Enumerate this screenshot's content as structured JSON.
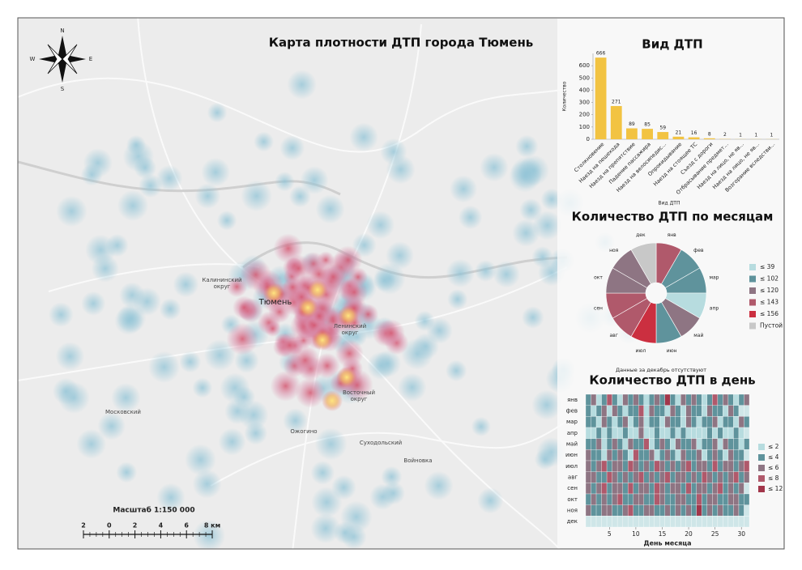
{
  "map": {
    "title": "Карта плотности ДТП города Тюмень",
    "compass": {
      "n": "N",
      "s": "S",
      "w": "W",
      "e": "E"
    },
    "places": [
      {
        "label": "Калининский",
        "label2": "округ"
      },
      {
        "label": "Тюмень"
      },
      {
        "label": "Ленинский",
        "label2": "округ"
      },
      {
        "label": "Восточный",
        "label2": "округ"
      },
      {
        "label": "Московский"
      },
      {
        "label": "Ожогино"
      },
      {
        "label": "Суходольский"
      },
      {
        "label": "Войновка"
      }
    ],
    "scale": {
      "title": "Масштаб 1:150 000",
      "labels": [
        "2",
        "0",
        "2",
        "4",
        "6",
        "8 км"
      ]
    }
  },
  "chart_data": [
    {
      "type": "bar",
      "title": "Вид ДТП",
      "y_label": "Количество",
      "x_label": "Вид ДТП",
      "categories": [
        "Столкновение",
        "Наезд на пешехода",
        "Наезд на препятствие",
        "Падение пассажира",
        "Наезд на велосипедис...",
        "Опрокидывание",
        "Наезд на стоящее ТС",
        "Съезд с дороги",
        "Отбрасывание предмет...",
        "Наезд на лицо, не яв...",
        "Наезд на лицо, не яв...",
        "Возгорание вследстви..."
      ],
      "values": [
        666,
        271,
        89,
        85,
        59,
        21,
        16,
        8,
        2,
        1,
        1,
        1
      ],
      "color": "#f2c342",
      "ylim": [
        0,
        700
      ],
      "yticks": [
        0,
        100,
        200,
        300,
        400,
        500,
        600
      ]
    },
    {
      "type": "pie",
      "title": "Количество ДТП по месяцам",
      "note": "Данные за декабрь отсутствуют",
      "categories": [
        "янв",
        "фев",
        "мар",
        "апр",
        "май",
        "июн",
        "июл",
        "авг",
        "сен",
        "окт",
        "ноя",
        "дек"
      ],
      "values": [
        140,
        95,
        98,
        35,
        112,
        100,
        155,
        135,
        140,
        115,
        117,
        null
      ],
      "legend": [
        {
          "value": 39,
          "label": "≤ 39",
          "color": "#b7dcdf"
        },
        {
          "value": 102,
          "label": "≤ 102",
          "color": "#5f939c"
        },
        {
          "value": 120,
          "label": "≤ 120",
          "color": "#8e7583"
        },
        {
          "value": 143,
          "label": "≤ 143",
          "color": "#b0596b"
        },
        {
          "value": 156,
          "label": "≤ 156",
          "color": "#cb2f40"
        },
        {
          "label": "Пустой",
          "color": "#c8c8c8"
        }
      ]
    },
    {
      "type": "heatmap",
      "title": "Количество ДТП в день",
      "x_label": "День месяца",
      "categories": [
        "янв",
        "фев",
        "мар",
        "апр",
        "май",
        "июн",
        "июл",
        "авг",
        "сен",
        "окт",
        "ноя",
        "дек"
      ],
      "xlim": [
        0.5,
        31.5
      ],
      "xticks": [
        5,
        10,
        15,
        20,
        25,
        30
      ],
      "values": [
        [
          3,
          5,
          2,
          4,
          7,
          3,
          2,
          5,
          4,
          6,
          3,
          2,
          4,
          5,
          3,
          9,
          4,
          2,
          6,
          3,
          5,
          4,
          2,
          3,
          7,
          4,
          5,
          3,
          2,
          4,
          6
        ],
        [
          4,
          2,
          3,
          6,
          2,
          5,
          3,
          2,
          4,
          3,
          7,
          2,
          5,
          3,
          4,
          2,
          6,
          3,
          2,
          5,
          4,
          3,
          2,
          6,
          3,
          4,
          2,
          5,
          3,
          null,
          null
        ],
        [
          3,
          4,
          2,
          5,
          3,
          2,
          4,
          6,
          2,
          3,
          5,
          2,
          4,
          3,
          2,
          5,
          3,
          4,
          2,
          6,
          3,
          2,
          4,
          3,
          5,
          2,
          3,
          4,
          2,
          5,
          3
        ],
        [
          2,
          1,
          3,
          2,
          4,
          1,
          2,
          3,
          1,
          2,
          5,
          2,
          1,
          3,
          2,
          1,
          4,
          2,
          3,
          1,
          2,
          2,
          1,
          3,
          2,
          4,
          1,
          2,
          3,
          2,
          null
        ],
        [
          4,
          3,
          5,
          2,
          4,
          6,
          3,
          2,
          5,
          4,
          3,
          7,
          2,
          4,
          5,
          3,
          2,
          6,
          4,
          3,
          5,
          2,
          4,
          3,
          6,
          2,
          5,
          4,
          3,
          2,
          4
        ],
        [
          5,
          3,
          4,
          2,
          6,
          3,
          5,
          4,
          2,
          7,
          3,
          4,
          5,
          2,
          3,
          6,
          4,
          2,
          5,
          3,
          4,
          6,
          2,
          3,
          5,
          4,
          2,
          6,
          3,
          4,
          null
        ],
        [
          6,
          4,
          5,
          8,
          3,
          5,
          6,
          4,
          7,
          5,
          3,
          6,
          4,
          8,
          5,
          3,
          6,
          4,
          5,
          7,
          3,
          6,
          5,
          4,
          8,
          3,
          5,
          6,
          4,
          5,
          7
        ],
        [
          5,
          6,
          4,
          3,
          7,
          5,
          4,
          6,
          3,
          5,
          8,
          4,
          6,
          3,
          5,
          7,
          4,
          6,
          5,
          3,
          6,
          4,
          7,
          5,
          3,
          6,
          4,
          5,
          7,
          4,
          6
        ],
        [
          6,
          4,
          5,
          7,
          3,
          6,
          5,
          4,
          8,
          3,
          5,
          6,
          4,
          7,
          5,
          3,
          6,
          5,
          4,
          7,
          3,
          5,
          6,
          4,
          5,
          7,
          3,
          6,
          4,
          5,
          null
        ],
        [
          4,
          5,
          3,
          6,
          4,
          5,
          7,
          3,
          4,
          6,
          5,
          3,
          4,
          7,
          5,
          4,
          3,
          6,
          5,
          4,
          3,
          7,
          4,
          5,
          6,
          3,
          4,
          5,
          6,
          3,
          4
        ],
        [
          5,
          3,
          4,
          6,
          5,
          3,
          4,
          5,
          7,
          4,
          3,
          5,
          6,
          4,
          3,
          5,
          4,
          6,
          3,
          5,
          4,
          12,
          3,
          5,
          4,
          6,
          3,
          4,
          5,
          3,
          null
        ],
        [
          null,
          null,
          null,
          null,
          null,
          null,
          null,
          null,
          null,
          null,
          null,
          null,
          null,
          null,
          null,
          null,
          null,
          null,
          null,
          null,
          null,
          null,
          null,
          null,
          null,
          null,
          null,
          null,
          null,
          null,
          null
        ]
      ],
      "legend": [
        {
          "value": 2,
          "label": "≤ 2",
          "color": "#b7dcdf"
        },
        {
          "value": 4,
          "label": "≤ 4",
          "color": "#5f939c"
        },
        {
          "value": 6,
          "label": "≤ 6",
          "color": "#8e7583"
        },
        {
          "value": 8,
          "label": "≤ 8",
          "color": "#b0596b"
        },
        {
          "value": 12,
          "label": "≤ 12",
          "color": "#a2364a"
        }
      ]
    }
  ]
}
